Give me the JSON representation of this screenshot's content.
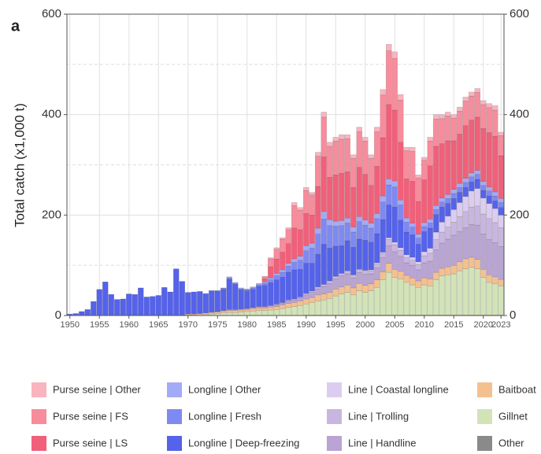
{
  "chart_data": {
    "type": "stacked_bar",
    "panel_label": "a",
    "y_label": "Total catch (x1,000 t)",
    "x": [
      1950,
      1951,
      1952,
      1953,
      1954,
      1955,
      1956,
      1957,
      1958,
      1959,
      1960,
      1961,
      1962,
      1963,
      1964,
      1965,
      1966,
      1967,
      1968,
      1969,
      1970,
      1971,
      1972,
      1973,
      1974,
      1975,
      1976,
      1977,
      1978,
      1979,
      1980,
      1981,
      1982,
      1983,
      1984,
      1985,
      1986,
      1987,
      1988,
      1989,
      1990,
      1991,
      1992,
      1993,
      1994,
      1995,
      1996,
      1997,
      1998,
      1999,
      2000,
      2001,
      2002,
      2003,
      2004,
      2005,
      2006,
      2007,
      2008,
      2009,
      2010,
      2011,
      2012,
      2013,
      2014,
      2015,
      2016,
      2017,
      2018,
      2019,
      2020,
      2021,
      2022,
      2023
    ],
    "xlim": [
      1949.5,
      2023.5
    ],
    "xticks": [
      1950,
      1955,
      1960,
      1965,
      1970,
      1975,
      1980,
      1985,
      1990,
      1995,
      2000,
      2005,
      2010,
      2015,
      2020,
      2023
    ],
    "ylim": [
      0,
      600
    ],
    "yticks": [
      0,
      200,
      400,
      600
    ],
    "y2lim": [
      0,
      600
    ],
    "y2ticks": [
      0,
      200,
      400,
      600
    ],
    "y_minor_grid": [
      100,
      300,
      500
    ],
    "grid": true,
    "legend": "bottom",
    "series": [
      {
        "name": "Purse seine | Other",
        "color": "#f9b4c0",
        "values": [
          0,
          0,
          0,
          0,
          0,
          0,
          0,
          0,
          0,
          0,
          0,
          0,
          0,
          0,
          0,
          0,
          0,
          0,
          0,
          0,
          0,
          0,
          0,
          0,
          0,
          0,
          0,
          0,
          0,
          0,
          0,
          0,
          0,
          1,
          2,
          3,
          3,
          4,
          6,
          5,
          6,
          5,
          8,
          10,
          8,
          8,
          9,
          8,
          7,
          9,
          8,
          7,
          9,
          11,
          13,
          13,
          11,
          7,
          8,
          6,
          6,
          8,
          9,
          8,
          8,
          7,
          8,
          8,
          8,
          8,
          8,
          8,
          9,
          7
        ]
      },
      {
        "name": "Purse seine | FS",
        "color": "#f78c9c",
        "values": [
          0,
          0,
          0,
          0,
          0,
          0,
          0,
          0,
          0,
          0,
          0,
          0,
          0,
          0,
          0,
          0,
          0,
          0,
          0,
          0,
          0,
          0,
          0,
          0,
          0,
          0,
          0,
          0,
          0,
          0,
          0,
          0,
          0,
          4,
          16,
          20,
          26,
          28,
          45,
          39,
          46,
          40,
          60,
          79,
          62,
          67,
          68,
          66,
          58,
          71,
          66,
          54,
          69,
          85,
          107,
          103,
          84,
          56,
          60,
          47,
          39,
          49,
          54,
          50,
          49,
          45,
          46,
          49,
          48,
          49,
          48,
          50,
          52,
          40
        ]
      },
      {
        "name": "Purse seine | LS",
        "color": "#f0607a",
        "values": [
          0,
          0,
          0,
          0,
          0,
          0,
          0,
          0,
          0,
          0,
          0,
          0,
          0,
          0,
          0,
          0,
          0,
          0,
          0,
          0,
          0,
          0,
          0,
          0,
          0,
          0,
          0,
          0,
          0,
          0,
          0,
          0,
          0,
          6,
          22,
          28,
          35,
          39,
          61,
          53,
          64,
          56,
          83,
          109,
          84,
          92,
          94,
          92,
          79,
          98,
          91,
          75,
          94,
          116,
          148,
          141,
          115,
          78,
          83,
          65,
          85,
          106,
          118,
          108,
          107,
          97,
          98,
          105,
          105,
          106,
          105,
          108,
          111,
          85
        ]
      },
      {
        "name": "Longline | Other",
        "color": "#a3abf7",
        "values": [
          0,
          0,
          0,
          0,
          0,
          0,
          0,
          0,
          0,
          0,
          0,
          0,
          0,
          0,
          0,
          0,
          0,
          0,
          0,
          0,
          0,
          0,
          0,
          1,
          1,
          1,
          1,
          2,
          2,
          2,
          2,
          2,
          3,
          3,
          4,
          5,
          5,
          6,
          7,
          8,
          10,
          10,
          12,
          15,
          12,
          10,
          10,
          10,
          10,
          10,
          10,
          10,
          10,
          12,
          12,
          12,
          10,
          8,
          8,
          8,
          8,
          8,
          8,
          8,
          8,
          8,
          8,
          8,
          8,
          8,
          8,
          8,
          8,
          8
        ]
      },
      {
        "name": "Longline | Fresh",
        "color": "#7f89f2",
        "values": [
          0,
          0,
          0,
          0,
          0,
          0,
          0,
          0,
          0,
          0,
          0,
          0,
          0,
          0,
          0,
          0,
          0,
          0,
          0,
          0,
          0,
          0,
          0,
          0,
          0,
          1,
          2,
          3,
          2,
          2,
          2,
          3,
          3,
          4,
          6,
          8,
          10,
          12,
          15,
          18,
          25,
          30,
          40,
          50,
          45,
          40,
          40,
          35,
          30,
          35,
          30,
          28,
          30,
          35,
          40,
          40,
          30,
          20,
          15,
          12,
          10,
          10,
          10,
          10,
          10,
          10,
          10,
          10,
          10,
          10,
          10,
          10,
          10,
          10
        ]
      },
      {
        "name": "Longline | Deep-freezing",
        "color": "#5562ea",
        "values": [
          3,
          4,
          8,
          12,
          28,
          52,
          67,
          42,
          32,
          33,
          42,
          41,
          54,
          36,
          37,
          39,
          55,
          46,
          92,
          67,
          43,
          44,
          44,
          38,
          42,
          40,
          42,
          60,
          50,
          38,
          35,
          36,
          40,
          42,
          45,
          48,
          50,
          55,
          58,
          55,
          60,
          55,
          65,
          80,
          65,
          60,
          55,
          60,
          55,
          60,
          60,
          55,
          58,
          65,
          65,
          70,
          55,
          45,
          45,
          35,
          40,
          40,
          35,
          30,
          25,
          22,
          20,
          18,
          18,
          18,
          15,
          15,
          15,
          15
        ]
      },
      {
        "name": "Line | Coastal longline",
        "color": "#dccdf0",
        "values": [
          0,
          0,
          0,
          0,
          0,
          0,
          0,
          0,
          0,
          0,
          0,
          0,
          0,
          0,
          0,
          0,
          0,
          0,
          0,
          0,
          0,
          0,
          0,
          0,
          0,
          0,
          0,
          0,
          0,
          0,
          0,
          0,
          0,
          0,
          0,
          0,
          0,
          0,
          0,
          0,
          0,
          0,
          0,
          0,
          0,
          0,
          0,
          0,
          0,
          0,
          2,
          2,
          3,
          3,
          4,
          5,
          5,
          6,
          6,
          6,
          8,
          10,
          15,
          20,
          22,
          25,
          28,
          30,
          32,
          35,
          32,
          30,
          28,
          25
        ]
      },
      {
        "name": "Line | Trolling",
        "color": "#c9b6e0",
        "values": [
          0,
          0,
          0,
          0,
          0,
          0,
          0,
          0,
          0,
          0,
          0,
          0,
          0,
          0,
          0,
          0,
          0,
          0,
          0,
          0,
          0,
          0,
          0,
          0,
          0,
          0,
          0,
          0,
          0,
          0,
          0,
          0,
          0,
          0,
          0,
          1,
          1,
          2,
          2,
          2,
          3,
          3,
          4,
          4,
          5,
          5,
          5,
          6,
          6,
          6,
          6,
          6,
          7,
          8,
          12,
          14,
          12,
          10,
          10,
          10,
          14,
          16,
          20,
          22,
          24,
          26,
          30,
          32,
          35,
          38,
          40,
          42,
          40,
          38
        ]
      },
      {
        "name": "Line | Handline",
        "color": "#b9a4d4",
        "values": [
          0,
          0,
          0,
          0,
          0,
          0,
          0,
          0,
          0,
          0,
          0,
          0,
          0,
          0,
          0,
          0,
          0,
          0,
          0,
          0,
          0,
          0,
          0,
          0,
          1,
          1,
          1,
          2,
          2,
          2,
          2,
          2,
          3,
          3,
          3,
          4,
          4,
          5,
          5,
          6,
          8,
          10,
          12,
          15,
          18,
          20,
          22,
          22,
          20,
          22,
          22,
          20,
          24,
          28,
          35,
          35,
          30,
          25,
          25,
          22,
          30,
          35,
          45,
          50,
          55,
          60,
          60,
          62,
          65,
          68,
          70,
          70,
          68,
          65
        ]
      },
      {
        "name": "Baitboat",
        "color": "#f5c090",
        "values": [
          0,
          0,
          0,
          0,
          0,
          0,
          0,
          0,
          0,
          0,
          1,
          1,
          1,
          1,
          1,
          1,
          1,
          1,
          1,
          1,
          2,
          2,
          2,
          3,
          3,
          3,
          4,
          4,
          4,
          4,
          4,
          5,
          5,
          5,
          6,
          6,
          7,
          8,
          8,
          9,
          10,
          10,
          12,
          12,
          12,
          14,
          14,
          15,
          14,
          15,
          14,
          14,
          15,
          16,
          18,
          16,
          15,
          14,
          14,
          13,
          14,
          14,
          15,
          15,
          16,
          17,
          18,
          20,
          20,
          19,
          16,
          15,
          14,
          13
        ]
      },
      {
        "name": "Gillnet",
        "color": "#d3e3b8",
        "values": [
          0,
          0,
          0,
          0,
          0,
          0,
          0,
          0,
          0,
          0,
          0,
          0,
          0,
          0,
          0,
          0,
          0,
          0,
          0,
          0,
          1,
          1,
          2,
          2,
          3,
          4,
          5,
          6,
          6,
          7,
          8,
          9,
          10,
          10,
          11,
          12,
          14,
          16,
          18,
          20,
          22,
          25,
          28,
          30,
          33,
          38,
          42,
          45,
          40,
          48,
          45,
          48,
          55,
          70,
          85,
          75,
          72,
          65,
          60,
          55,
          60,
          58,
          70,
          78,
          80,
          82,
          88,
          92,
          95,
          92,
          75,
          65,
          62,
          58
        ]
      },
      {
        "name": "Other",
        "color": "#8a8a8a",
        "values": [
          0,
          0,
          0,
          0,
          0,
          0,
          0,
          0,
          0,
          0,
          0,
          0,
          0,
          0,
          0,
          0,
          0,
          0,
          0,
          0,
          0,
          0,
          0,
          0,
          0,
          0,
          0,
          0,
          0,
          0,
          0,
          0,
          0,
          0,
          0,
          0,
          0,
          0,
          0,
          0,
          1,
          1,
          1,
          1,
          1,
          1,
          1,
          1,
          1,
          1,
          1,
          1,
          1,
          1,
          1,
          1,
          1,
          1,
          1,
          1,
          1,
          1,
          1,
          1,
          1,
          1,
          1,
          1,
          1,
          1,
          1,
          1,
          1,
          1
        ]
      }
    ]
  }
}
